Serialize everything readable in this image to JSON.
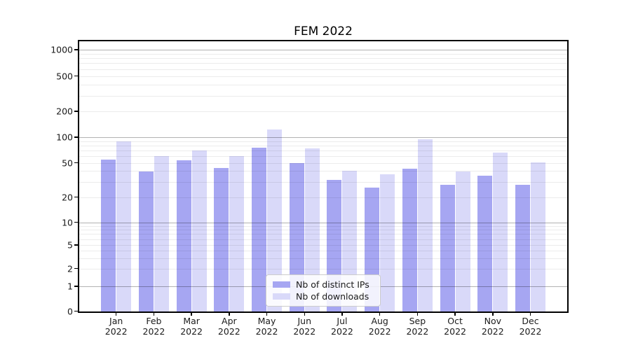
{
  "chart_data": {
    "type": "bar",
    "title": "FEM 2022",
    "scale": "symlog",
    "grid": "major+minor",
    "legend_position": "lower center",
    "year_suffix": "2022",
    "categories": [
      "Jan",
      "Feb",
      "Mar",
      "Apr",
      "May",
      "Jun",
      "Jul",
      "Aug",
      "Sep",
      "Oct",
      "Nov",
      "Dec"
    ],
    "series": [
      {
        "name": "Nb of distinct IPs",
        "color": "#a6a6f2",
        "values": [
          55,
          40,
          54,
          44,
          76,
          50,
          32,
          26,
          43,
          28,
          36,
          28
        ]
      },
      {
        "name": "Nb of downloads",
        "color": "#d9d9f9",
        "values": [
          90,
          61,
          70,
          61,
          123,
          75,
          41,
          37,
          95,
          40,
          67,
          51
        ]
      }
    ],
    "y_ticks": [
      0,
      1,
      2,
      5,
      10,
      20,
      50,
      100,
      200,
      500,
      1000
    ],
    "ylim": [
      0,
      1200
    ],
    "colors": {
      "spine": "#000000",
      "major_grid": "#b3b3b3",
      "minor_grid": "#ececec",
      "legend_border": "#cccccc",
      "text": "#1a1a1a"
    }
  }
}
